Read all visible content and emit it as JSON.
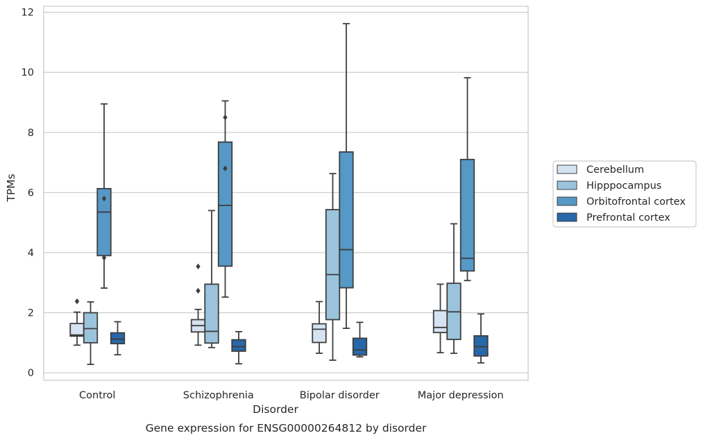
{
  "chart_data": {
    "type": "box",
    "title": "Gene expression for ENSG00000264812 by disorder",
    "xlabel": "Disorder",
    "ylabel": "TPMs",
    "ylim": [
      -0.25,
      12.2
    ],
    "yticks": [
      0,
      2,
      4,
      6,
      8,
      10,
      12
    ],
    "grid": true,
    "legend_position": "right",
    "categories": [
      "Control",
      "Schizophrenia",
      "Bipolar disorder",
      "Major depression"
    ],
    "series": [
      {
        "name": "Cerebellum",
        "color": "#d6e3f1",
        "boxes": [
          {
            "min": 0.92,
            "q1": 1.22,
            "median": 1.26,
            "q3": 1.64,
            "max": 2.02,
            "outliers": [
              2.38
            ]
          },
          {
            "min": 0.92,
            "q1": 1.36,
            "median": 1.57,
            "q3": 1.77,
            "max": 2.11,
            "outliers": [
              2.73,
              3.54
            ]
          },
          {
            "min": 0.65,
            "q1": 1.01,
            "median": 1.45,
            "q3": 1.63,
            "max": 2.37,
            "outliers": []
          },
          {
            "min": 0.67,
            "q1": 1.34,
            "median": 1.51,
            "q3": 2.07,
            "max": 2.95,
            "outliers": []
          }
        ]
      },
      {
        "name": "Hipppocampus",
        "color": "#9bc3dc",
        "boxes": [
          {
            "min": 0.28,
            "q1": 1.0,
            "median": 1.47,
            "q3": 2.0,
            "max": 2.36,
            "outliers": []
          },
          {
            "min": 0.84,
            "q1": 0.99,
            "median": 1.38,
            "q3": 2.95,
            "max": 5.4,
            "outliers": []
          },
          {
            "min": 0.42,
            "q1": 1.77,
            "median": 3.27,
            "q3": 5.43,
            "max": 6.63,
            "outliers": []
          },
          {
            "min": 0.65,
            "q1": 1.11,
            "median": 2.03,
            "q3": 2.98,
            "max": 4.96,
            "outliers": []
          }
        ]
      },
      {
        "name": "Orbitofrontal cortex",
        "color": "#5698c6",
        "boxes": [
          {
            "min": 2.82,
            "q1": 3.9,
            "median": 5.35,
            "q3": 6.13,
            "max": 8.95,
            "outliers": [
              3.83,
              5.8
            ]
          },
          {
            "min": 2.52,
            "q1": 3.55,
            "median": 5.57,
            "q3": 7.68,
            "max": 9.05,
            "outliers": [
              6.8,
              8.5
            ]
          },
          {
            "min": 1.48,
            "q1": 2.83,
            "median": 4.1,
            "q3": 7.35,
            "max": 11.62,
            "outliers": []
          },
          {
            "min": 3.07,
            "q1": 3.39,
            "median": 3.81,
            "q3": 7.1,
            "max": 9.82,
            "outliers": []
          }
        ]
      },
      {
        "name": "Prefrontal cortex",
        "color": "#2867a8",
        "boxes": [
          {
            "min": 0.6,
            "q1": 0.97,
            "median": 1.12,
            "q3": 1.33,
            "max": 1.7,
            "outliers": []
          },
          {
            "min": 0.3,
            "q1": 0.72,
            "median": 0.87,
            "q3": 1.1,
            "max": 1.37,
            "outliers": []
          },
          {
            "min": 0.53,
            "q1": 0.59,
            "median": 0.76,
            "q3": 1.15,
            "max": 1.68,
            "outliers": []
          },
          {
            "min": 0.33,
            "q1": 0.56,
            "median": 0.87,
            "q3": 1.23,
            "max": 1.96,
            "outliers": []
          }
        ]
      }
    ]
  }
}
